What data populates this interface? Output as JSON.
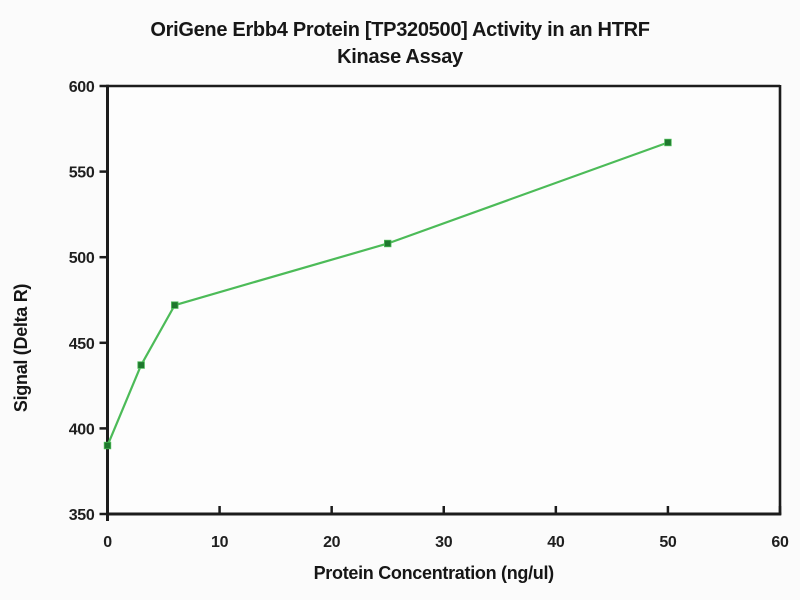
{
  "page": {
    "background_color": "#fbfbfb"
  },
  "chart_data": {
    "type": "line",
    "title": "OriGene Erbb4 Protein [TP320500] Activity in an HTRF Kinase Assay",
    "title_lines": [
      "OriGene Erbb4 Protein [TP320500] Activity in an HTRF",
      "Kinase Assay"
    ],
    "xlabel": "Protein Concentration (ng/ul)",
    "ylabel": "Signal (Delta R)",
    "x": [
      0,
      3,
      6,
      25,
      50
    ],
    "y": [
      390,
      437,
      472,
      508,
      567
    ],
    "xlim": [
      0,
      60
    ],
    "ylim": [
      350,
      600
    ],
    "xticks": [
      0,
      10,
      20,
      30,
      40,
      50,
      60
    ],
    "yticks": [
      350,
      400,
      450,
      500,
      550,
      600
    ],
    "grid": false,
    "legend": false,
    "marker_shape": "square",
    "line_color": "#4cbb58",
    "marker_color": "#1e782d",
    "axis_color": "#1c1c1c",
    "text_color": "#1f1f1f"
  }
}
